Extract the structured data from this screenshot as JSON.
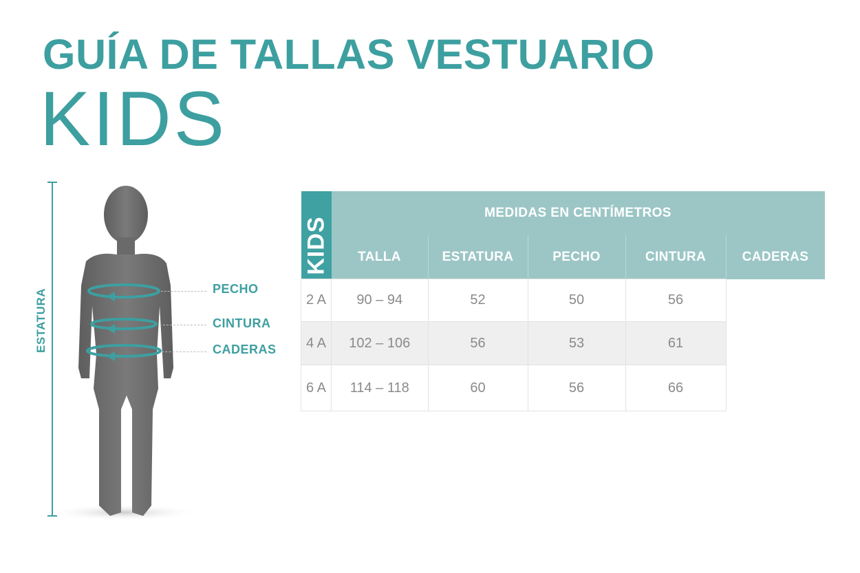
{
  "title": "GUÍA DE TALLAS VESTUARIO",
  "subtitle": "KIDS",
  "figure": {
    "height_label": "ESTATURA",
    "measures": [
      "PECHO",
      "CINTURA",
      "CADERAS"
    ]
  },
  "colors": {
    "accent": "#3d9fa0",
    "header": "#9cc6c6",
    "side": "#3fa1a2"
  },
  "table": {
    "side_label": "KIDS",
    "group_header": "MEDIDAS EN CENTÍMETROS",
    "columns": [
      "TALLA",
      "ESTATURA",
      "PECHO",
      "CINTURA",
      "CADERAS"
    ],
    "rows": [
      [
        "2 A",
        "90 – 94",
        "52",
        "50",
        "56"
      ],
      [
        "4 A",
        "102 – 106",
        "56",
        "53",
        "61"
      ],
      [
        "6 A",
        "114 – 118",
        "60",
        "56",
        "66"
      ]
    ]
  }
}
